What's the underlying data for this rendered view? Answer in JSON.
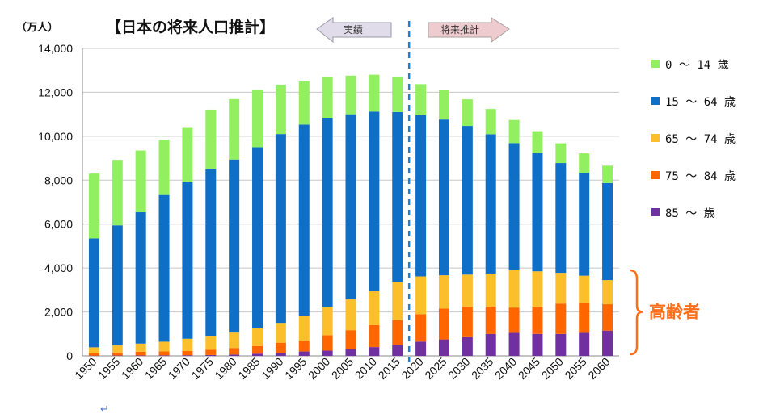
{
  "page": {
    "return_mark": "↵"
  },
  "chart_data": {
    "type": "bar",
    "stacked": true,
    "title": "【日本の将来人口推計】",
    "unit_label": "（万人）",
    "ylim": [
      0,
      14000
    ],
    "y_ticks": [
      "0",
      "2,000",
      "4,000",
      "6,000",
      "8,000",
      "10,000",
      "12,000",
      "14,000"
    ],
    "categories": [
      "1950",
      "1955",
      "1960",
      "1965",
      "1970",
      "1975",
      "1980",
      "1985",
      "1990",
      "1995",
      "2000",
      "2005",
      "2010",
      "2015",
      "2020",
      "2025",
      "2030",
      "2035",
      "2040",
      "2045",
      "2050",
      "2055",
      "2060"
    ],
    "series": [
      {
        "name": "85 ～ 歳",
        "color": "#7030a0",
        "values": [
          10,
          15,
          20,
          25,
          30,
          40,
          60,
          100,
          130,
          200,
          240,
          320,
          400,
          500,
          650,
          750,
          850,
          1000,
          1050,
          1000,
          1000,
          1050,
          1150
        ]
      },
      {
        "name": "75 ～ 84 歳",
        "color": "#ff6600",
        "values": [
          100,
          140,
          170,
          180,
          190,
          240,
          300,
          350,
          470,
          510,
          700,
          850,
          1000,
          1130,
          1250,
          1400,
          1400,
          1250,
          1150,
          1250,
          1380,
          1350,
          1200
        ]
      },
      {
        "name": "65 ～ 74 歳",
        "color": "#fcbf2c",
        "values": [
          280,
          320,
          370,
          440,
          560,
          630,
          700,
          800,
          900,
          1100,
          1300,
          1400,
          1550,
          1750,
          1720,
          1520,
          1450,
          1500,
          1700,
          1600,
          1400,
          1250,
          1100
        ]
      },
      {
        "name": "15 ～ 64 歳",
        "color": "#0f6fc6",
        "values": [
          4960,
          5470,
          5980,
          6680,
          7120,
          7580,
          7880,
          8250,
          8600,
          8720,
          8600,
          8430,
          8170,
          7720,
          7340,
          7090,
          6770,
          6340,
          5790,
          5380,
          5000,
          4690,
          4420
        ]
      },
      {
        "name": "0 ～ 14 歳",
        "color": "#92f060",
        "values": [
          2950,
          2980,
          2810,
          2520,
          2480,
          2720,
          2750,
          2600,
          2250,
          2000,
          1850,
          1760,
          1680,
          1590,
          1410,
          1330,
          1210,
          1150,
          1050,
          1000,
          900,
          880,
          790
        ]
      }
    ],
    "legend_order": [
      "0 ～ 14 歳",
      "15 ～ 64 歳",
      "65 ～ 74 歳",
      "75 ～ 84 歳",
      "85 ～ 歳"
    ],
    "legend_position": "right",
    "grid": true,
    "annotations": {
      "left_arrow": "実績",
      "right_arrow": "将来推計",
      "divider_between": [
        "2015",
        "2020"
      ],
      "bracket_label": "高齢者",
      "bracket_color": "#ff6f1a",
      "bracket_range": [
        0,
        4000
      ]
    }
  }
}
